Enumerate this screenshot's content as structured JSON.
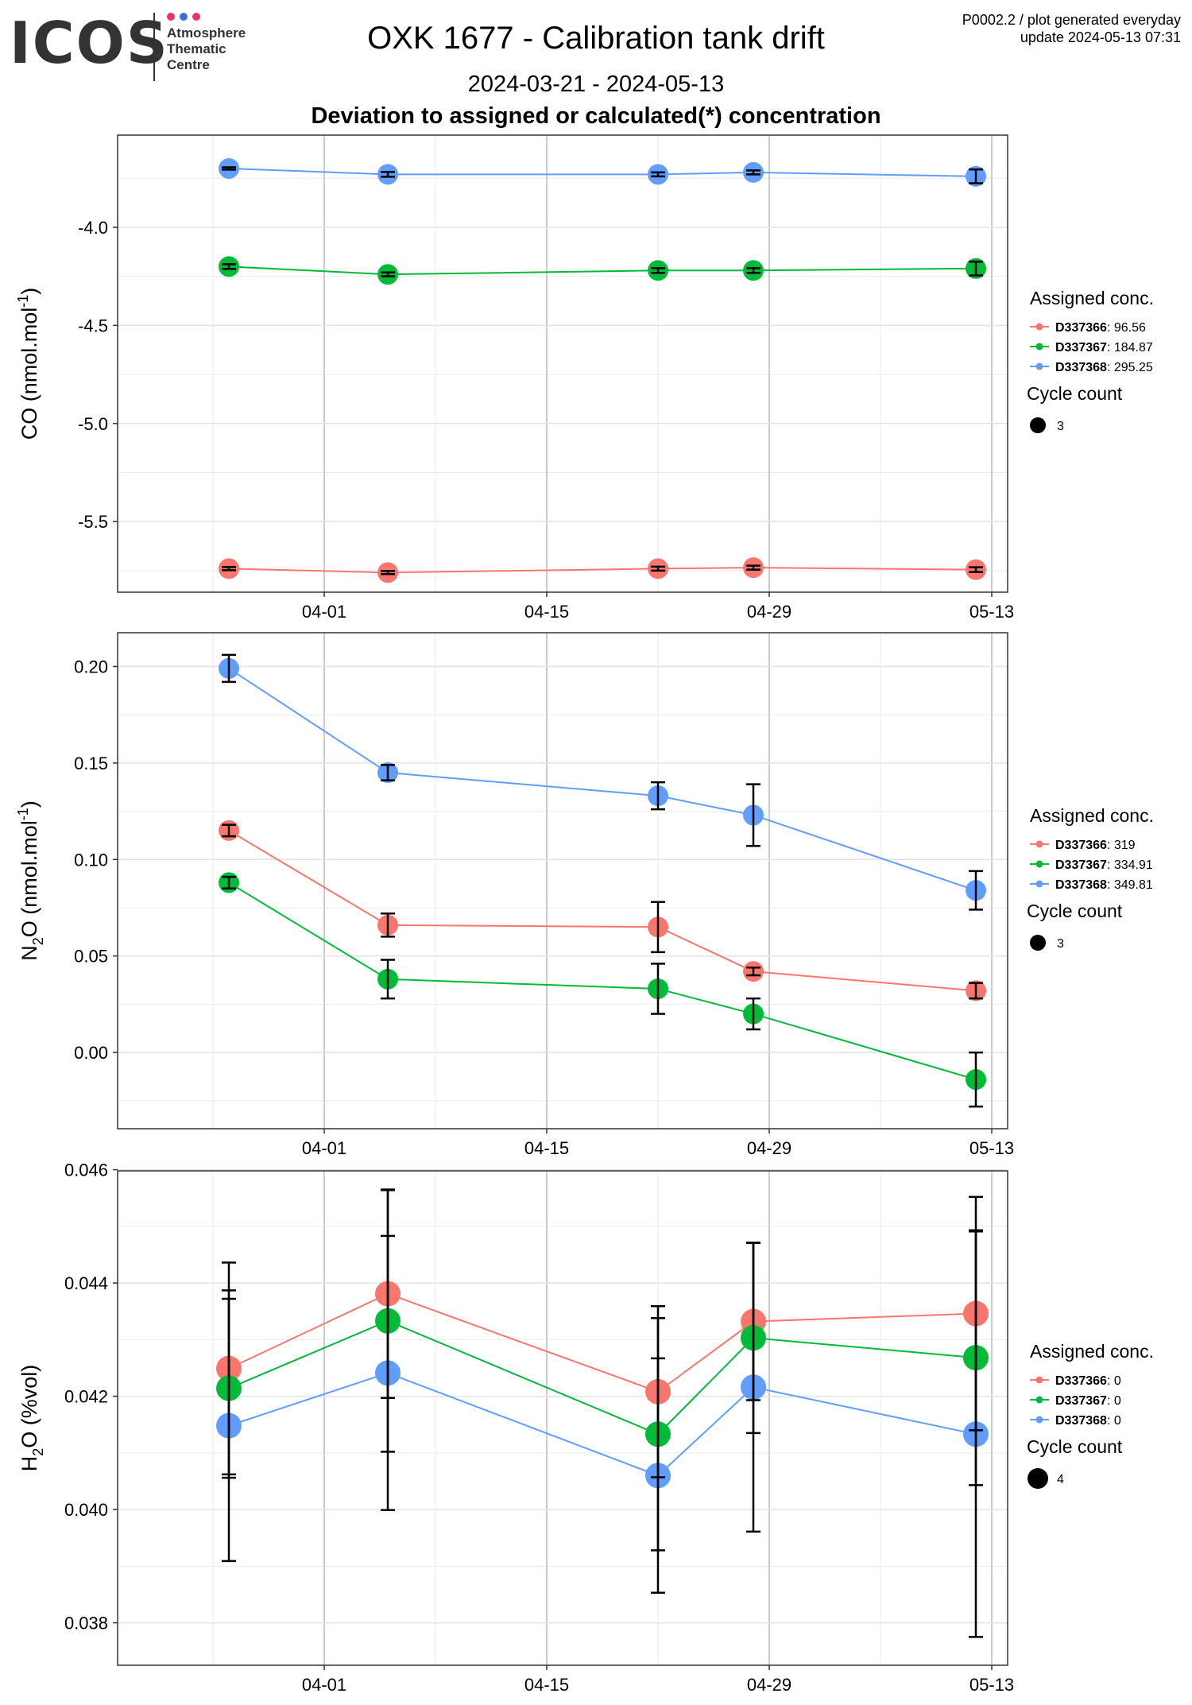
{
  "logo": {
    "text": "ICOS",
    "dot_colors": [
      "#e8336b",
      "#3b6fd9",
      "#e8336b"
    ],
    "sub_lines": [
      "Atmosphere",
      "Thematic",
      "Centre"
    ]
  },
  "header": {
    "title": "OXK 1677 - Calibration tank drift",
    "date_range": "2024-03-21 - 2024-05-13",
    "subtitle": "Deviation to assigned or calculated(*) concentration",
    "meta_line1": "P0002.2 / plot generated everyday",
    "meta_line2": "update  2024-05-13 07:31"
  },
  "colors": {
    "D337366": "#f8766d",
    "D337367": "#00ba38",
    "D337368": "#619cff"
  },
  "chart_data": [
    {
      "type": "line",
      "ylabel": "CO (nmol.mol",
      "ylabel_sup": "-1",
      "ylabel_tail": ")",
      "ylim": [
        -5.86,
        -3.53
      ],
      "yticks": [
        -4.0,
        -4.5,
        -5.0,
        -5.5
      ],
      "ytick_labels": [
        "-4.0",
        "-4.5",
        "-5.0",
        "-5.5"
      ],
      "x": [
        "2024-03-26",
        "2024-04-05",
        "2024-04-22",
        "2024-04-28",
        "2024-05-12"
      ],
      "xlim": [
        "2024-03-19",
        "2024-05-14"
      ],
      "xticks": [
        "2024-04-01",
        "2024-04-15",
        "2024-04-29",
        "2024-05-13"
      ],
      "xtick_labels": [
        "04-01",
        "04-15",
        "04-29",
        "05-13"
      ],
      "series": [
        {
          "name": "D337366",
          "value_label": "96.56",
          "values": [
            -5.74,
            -5.76,
            -5.74,
            -5.735,
            -5.745
          ],
          "err": [
            0.008,
            0.008,
            0.01,
            0.01,
            0.012
          ]
        },
        {
          "name": "D337367",
          "value_label": "184.87",
          "values": [
            -4.2,
            -4.24,
            -4.22,
            -4.22,
            -4.21
          ],
          "err": [
            0.012,
            0.01,
            0.012,
            0.012,
            0.035
          ]
        },
        {
          "name": "D337368",
          "value_label": "295.25",
          "values": [
            -3.7,
            -3.73,
            -3.73,
            -3.72,
            -3.74
          ],
          "err": [
            0.006,
            0.012,
            0.01,
            0.01,
            0.035
          ]
        }
      ],
      "legend_title": "Assigned conc.",
      "cycle_title": "Cycle count",
      "cycle_value": "3"
    },
    {
      "type": "line",
      "ylabel": "N",
      "ylabel_sub": "2",
      "ylabel_mid": "O (nmol.mol",
      "ylabel_sup": "-1",
      "ylabel_tail": ")",
      "ylim": [
        -0.0395,
        0.2175
      ],
      "yticks": [
        0.0,
        0.05,
        0.1,
        0.15,
        0.2
      ],
      "ytick_labels": [
        "0.00",
        "0.05",
        "0.10",
        "0.15",
        "0.20"
      ],
      "x": [
        "2024-03-26",
        "2024-04-05",
        "2024-04-22",
        "2024-04-28",
        "2024-05-12"
      ],
      "xlim": [
        "2024-03-19",
        "2024-05-14"
      ],
      "xticks": [
        "2024-04-01",
        "2024-04-15",
        "2024-04-29",
        "2024-05-13"
      ],
      "xtick_labels": [
        "04-01",
        "04-15",
        "04-29",
        "05-13"
      ],
      "series": [
        {
          "name": "D337366",
          "value_label": "319",
          "values": [
            0.115,
            0.066,
            0.065,
            0.042,
            0.032
          ],
          "err": [
            0.003,
            0.006,
            0.013,
            0.002,
            0.004
          ]
        },
        {
          "name": "D337367",
          "value_label": "334.91",
          "values": [
            0.088,
            0.038,
            0.033,
            0.02,
            -0.014
          ],
          "err": [
            0.003,
            0.01,
            0.013,
            0.008,
            0.014
          ]
        },
        {
          "name": "D337368",
          "value_label": "349.81",
          "values": [
            0.199,
            0.145,
            0.133,
            0.123,
            0.084
          ],
          "err": [
            0.007,
            0.004,
            0.007,
            0.016,
            0.01
          ]
        }
      ],
      "legend_title": "Assigned conc.",
      "cycle_title": "Cycle count",
      "cycle_value": "3"
    },
    {
      "type": "line",
      "ylabel": "H",
      "ylabel_sub": "2",
      "ylabel_mid": "O (%vol)",
      "ylim": [
        0.03725,
        0.04598
      ],
      "yticks": [
        0.038,
        0.04,
        0.042,
        0.044,
        0.046
      ],
      "ytick_labels": [
        "0.038",
        "0.040",
        "0.042",
        "0.044",
        "0.046"
      ],
      "x": [
        "2024-03-26",
        "2024-04-05",
        "2024-04-22",
        "2024-04-28",
        "2024-05-12"
      ],
      "xlim": [
        "2024-03-19",
        "2024-05-14"
      ],
      "xticks": [
        "2024-04-01",
        "2024-04-15",
        "2024-04-29",
        "2024-05-13"
      ],
      "xtick_labels": [
        "04-01",
        "04-15",
        "04-29",
        "05-13"
      ],
      "series": [
        {
          "name": "D337366",
          "value_label": "0",
          "values": [
            0.04249,
            0.04381,
            0.04208,
            0.04332,
            0.04346
          ],
          "err": [
            0.00187,
            0.00184,
            0.00151,
            0.00139,
            0.00206
          ]
        },
        {
          "name": "D337367",
          "value_label": "0",
          "values": [
            0.04214,
            0.04333,
            0.04133,
            0.04303,
            0.04268
          ],
          "err": [
            0.00158,
            0.00231,
            0.00205,
            0.00168,
            0.00225
          ]
        },
        {
          "name": "D337368",
          "value_label": "0",
          "values": [
            0.04148,
            0.04241,
            0.0406,
            0.04216,
            0.04133
          ],
          "err": [
            0.00239,
            0.00242,
            0.00207,
            0.00255,
            0.00358
          ]
        }
      ],
      "legend_title": "Assigned conc.",
      "cycle_title": "Cycle count",
      "cycle_value": "4"
    }
  ]
}
